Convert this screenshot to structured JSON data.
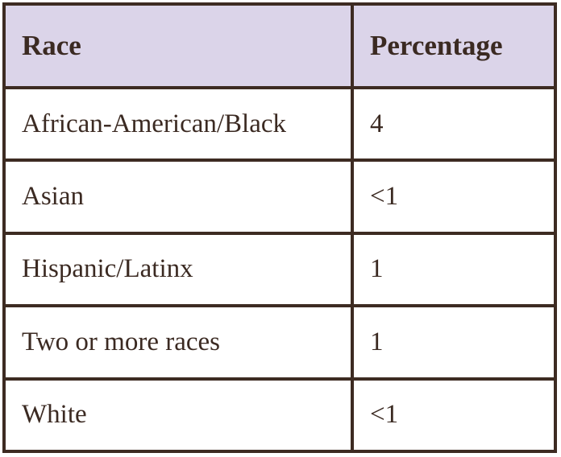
{
  "table": {
    "header": [
      "Race",
      "Percentage"
    ],
    "rows": [
      [
        "African-American/Black",
        "4"
      ],
      [
        "Asian",
        "<1"
      ],
      [
        "Hispanic/Latinx",
        "1"
      ],
      [
        "Two or more races",
        "1"
      ],
      [
        "White",
        "<1"
      ]
    ]
  }
}
